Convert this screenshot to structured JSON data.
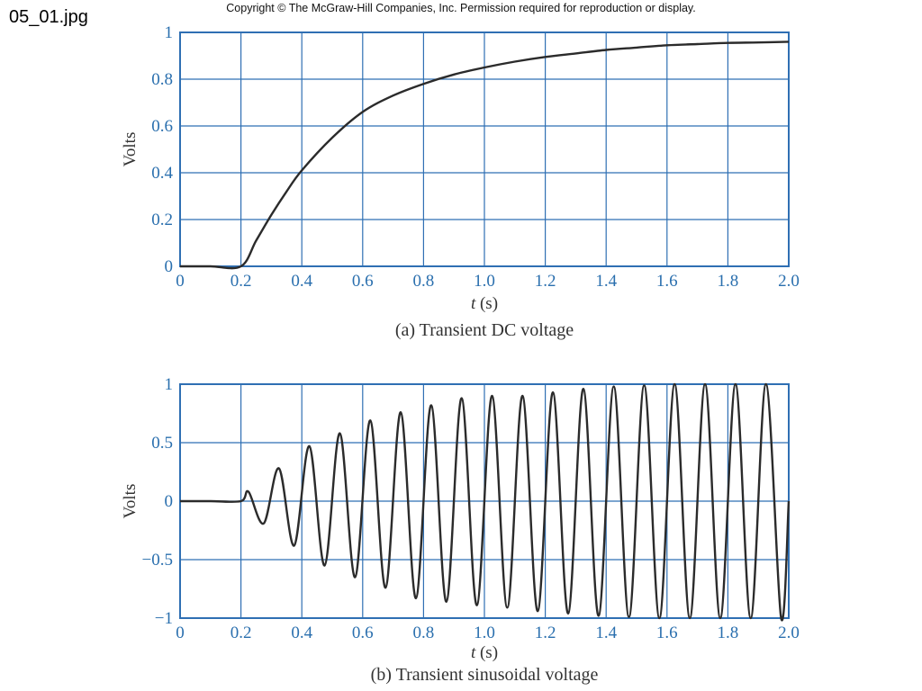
{
  "image_label": "05_01.jpg",
  "copyright": "Copyright © The McGraw-Hill Companies, Inc. Permission required for reproduction or display.",
  "colors": {
    "grid": "#2f6fb3",
    "curve": "#2b2b2b",
    "tick_text": "#2a6fae"
  },
  "chart_data": [
    {
      "type": "line",
      "caption": "(a) Transient DC voltage",
      "xlabel": "t (s)",
      "ylabel": "Volts",
      "xlim": [
        0,
        2.0
      ],
      "ylim": [
        0,
        1
      ],
      "x_ticks": [
        "0",
        "0.2",
        "0.4",
        "0.6",
        "0.8",
        "1.0",
        "1.2",
        "1.4",
        "1.6",
        "1.8",
        "2.0"
      ],
      "y_ticks": [
        "0",
        "0.2",
        "0.4",
        "0.6",
        "0.8",
        "1"
      ],
      "grid": true,
      "series": [
        {
          "x": [
            0,
            0.1,
            0.2,
            0.25,
            0.3,
            0.35,
            0.4,
            0.5,
            0.6,
            0.7,
            0.8,
            0.9,
            1.0,
            1.1,
            1.2,
            1.3,
            1.4,
            1.5,
            1.6,
            1.7,
            1.8,
            1.9,
            2.0
          ],
          "values": [
            0,
            0,
            0,
            0.11,
            0.22,
            0.32,
            0.41,
            0.55,
            0.66,
            0.73,
            0.78,
            0.82,
            0.85,
            0.875,
            0.895,
            0.91,
            0.925,
            0.935,
            0.945,
            0.95,
            0.955,
            0.957,
            0.96
          ]
        }
      ]
    },
    {
      "type": "line",
      "caption": "(b) Transient sinusoidal voltage",
      "xlabel": "t (s)",
      "ylabel": "Volts",
      "xlim": [
        0,
        2.0
      ],
      "ylim": [
        -1,
        1
      ],
      "x_ticks": [
        "0",
        "0.2",
        "0.4",
        "0.6",
        "0.8",
        "1.0",
        "1.2",
        "1.4",
        "1.6",
        "1.8",
        "2.0"
      ],
      "y_ticks": [
        "−1",
        "−0.5",
        "0",
        "0.5",
        "1"
      ],
      "grid": true,
      "series": [
        {
          "x": [
            0,
            0.1,
            0.2,
            0.225,
            0.275,
            0.325,
            0.375,
            0.425,
            0.475,
            0.525,
            0.575,
            0.625,
            0.675,
            0.725,
            0.775,
            0.825,
            0.875,
            0.925,
            0.975,
            1.025,
            1.075,
            1.125,
            1.175,
            1.225,
            1.275,
            1.325,
            1.375,
            1.425,
            1.475,
            1.525,
            1.575,
            1.625,
            1.675,
            1.725,
            1.775,
            1.825,
            1.875,
            1.925,
            1.975,
            2.0
          ],
          "values": [
            0,
            0,
            0,
            0.08,
            -0.19,
            0.28,
            -0.38,
            0.47,
            -0.55,
            0.58,
            -0.65,
            0.69,
            -0.74,
            0.76,
            -0.83,
            0.82,
            -0.86,
            0.88,
            -0.89,
            0.9,
            -0.91,
            0.9,
            -0.94,
            0.93,
            -0.96,
            0.96,
            -0.98,
            0.98,
            -0.99,
            0.99,
            -1.0,
            1.0,
            -1.0,
            1.0,
            -1.0,
            1.0,
            -1.0,
            1.0,
            -1.0,
            0
          ]
        }
      ]
    }
  ]
}
